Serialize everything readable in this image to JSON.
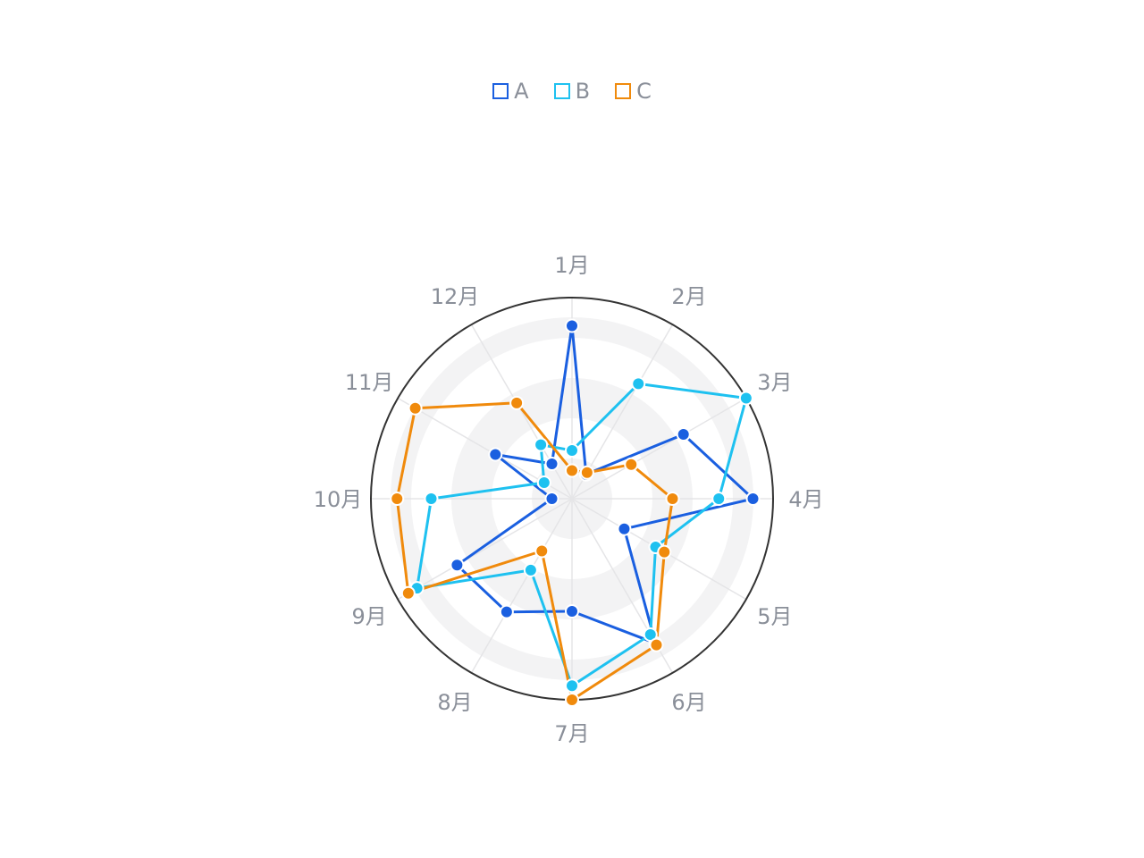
{
  "chart_data": {
    "type": "radar",
    "categories": [
      "1月",
      "2月",
      "3月",
      "4月",
      "5月",
      "6月",
      "7月",
      "8月",
      "9月",
      "10月",
      "11月",
      "12月"
    ],
    "rmax": 100,
    "rings": [
      20,
      40,
      60,
      80,
      100
    ],
    "series": [
      {
        "name": "A",
        "color": "#1a5fe0",
        "values": [
          86,
          14,
          64,
          90,
          30,
          83,
          56,
          65,
          66,
          10,
          44,
          20
        ]
      },
      {
        "name": "B",
        "color": "#1ec1f0",
        "values": [
          24,
          66,
          100,
          73,
          48,
          78,
          93,
          41,
          89,
          70,
          16,
          31
        ]
      },
      {
        "name": "C",
        "color": "#f08a0c",
        "values": [
          14,
          15,
          34,
          50,
          53,
          84,
          100,
          30,
          94,
          87,
          90,
          55
        ]
      }
    ],
    "legend_position": "top-center",
    "grid": true
  }
}
